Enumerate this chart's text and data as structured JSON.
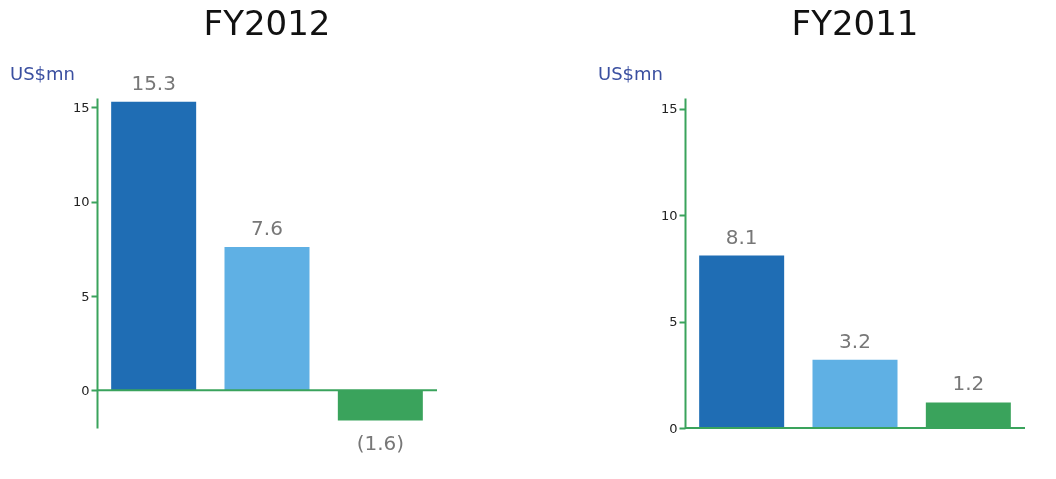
{
  "chart_data": [
    {
      "type": "bar",
      "title": "FY2012",
      "ylabel": "US$mn",
      "categories": [
        null,
        null,
        null
      ],
      "values": [
        15.3,
        7.6,
        -1.6
      ],
      "colors": [
        "#1f6db4",
        "#5fb0e4",
        "#3aa35c"
      ],
      "value_labels": [
        "15.3",
        "7.6",
        "(1.6)"
      ],
      "ref_lines": [
        {
          "axis": "y",
          "value": 0,
          "color": "#3aa35c"
        }
      ],
      "ylim": [
        -2,
        15.5
      ],
      "yticks": [
        0,
        5,
        10,
        15
      ],
      "grid": false,
      "legend": false
    },
    {
      "type": "bar",
      "title": "FY2011",
      "ylabel": "US$mn",
      "categories": [
        null,
        null,
        null
      ],
      "values": [
        8.1,
        3.2,
        1.2
      ],
      "colors": [
        "#1f6db4",
        "#5fb0e4",
        "#3aa35c"
      ],
      "data_labels": true,
      "ref_lines": [
        {
          "axis": "y",
          "value": 0,
          "color": "#3aa35c"
        }
      ],
      "ylim": [
        0,
        15.5
      ],
      "yticks": [
        0,
        5,
        10,
        15
      ],
      "grid": false,
      "legend": false
    }
  ]
}
